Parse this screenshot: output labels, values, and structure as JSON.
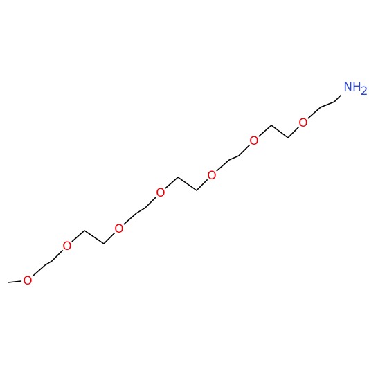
{
  "oxygens": [
    {
      "label": "O"
    },
    {
      "label": "O"
    },
    {
      "label": "O"
    },
    {
      "label": "O"
    },
    {
      "label": "O"
    },
    {
      "label": "O"
    },
    {
      "label": "O"
    }
  ],
  "amine": {
    "label": "NH",
    "subscript": "2"
  }
}
